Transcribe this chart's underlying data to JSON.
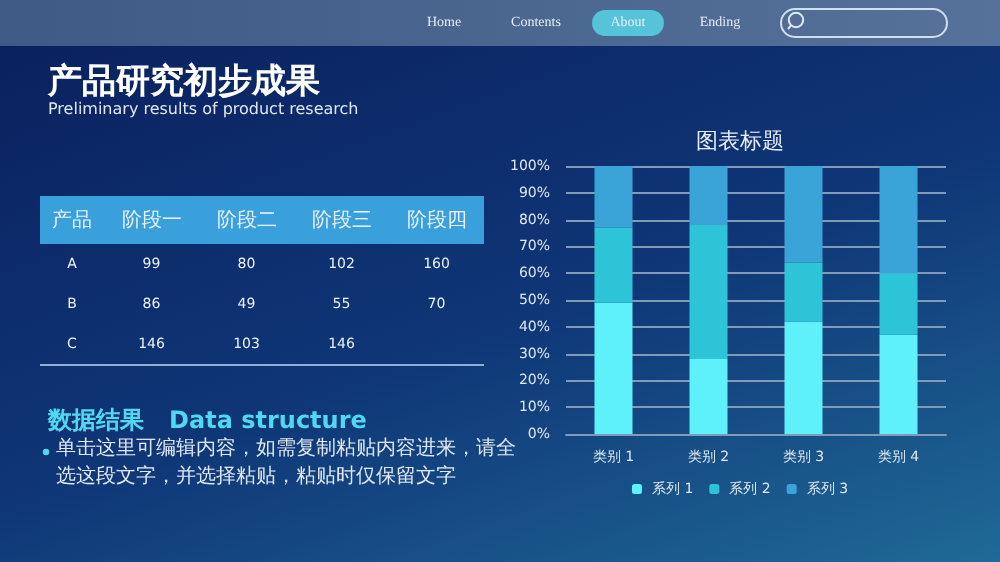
{
  "chart_data": [
    {
      "type": "other",
      "title": "产品研究初步成果",
      "subtitle": "Preliminary results of product research",
      "legend_title": "产品",
      "categories": [
        "阶段一",
        "阶段二",
        "阶段三",
        "阶段四"
      ],
      "data_labels": true,
      "series": [
        {
          "name": "A",
          "values": [
            99,
            80,
            102,
            160
          ]
        },
        {
          "name": "B",
          "values": [
            86,
            49,
            55,
            70
          ]
        },
        {
          "name": "C",
          "values": [
            146,
            103,
            146,
            null
          ]
        }
      ],
      "annotations": [
        "Home",
        "Contents",
        "About",
        "Ending",
        "数据结果   Data structure",
        "单击这里可编辑内容，如需复制粘贴内容进来，请全选这段文字，并选择粘贴，粘贴时仅保留文字"
      ]
    },
    {
      "type": "bar",
      "stacked": true,
      "title": "图表标题",
      "categories": [
        "类别 1",
        "类别 2",
        "类别 3",
        "类别 4"
      ],
      "ylim": [
        0,
        100
      ],
      "yticks": [
        {
          "value": 0,
          "label": "0%"
        },
        {
          "value": 10,
          "label": "10%"
        },
        {
          "value": 20,
          "label": "20%"
        },
        {
          "value": 30,
          "label": "30%"
        },
        {
          "value": 40,
          "label": "40%"
        },
        {
          "value": 50,
          "label": "50%"
        },
        {
          "value": 60,
          "label": "60%"
        },
        {
          "value": 70,
          "label": "70%"
        },
        {
          "value": 80,
          "label": "80%"
        },
        {
          "value": 90,
          "label": "90%"
        },
        {
          "value": 100,
          "label": "100%"
        }
      ],
      "grid": "y",
      "legend": "bottom",
      "series": [
        {
          "name": "系列 1",
          "color": "#5ef0fb",
          "values": [
            49,
            28,
            42,
            37
          ]
        },
        {
          "name": "系列 2",
          "color": "#2ec4d8",
          "values": [
            28,
            50,
            22,
            23
          ]
        },
        {
          "name": "系列 3",
          "color": "#3aa3d8",
          "values": [
            23,
            22,
            36,
            40
          ]
        }
      ]
    }
  ]
}
